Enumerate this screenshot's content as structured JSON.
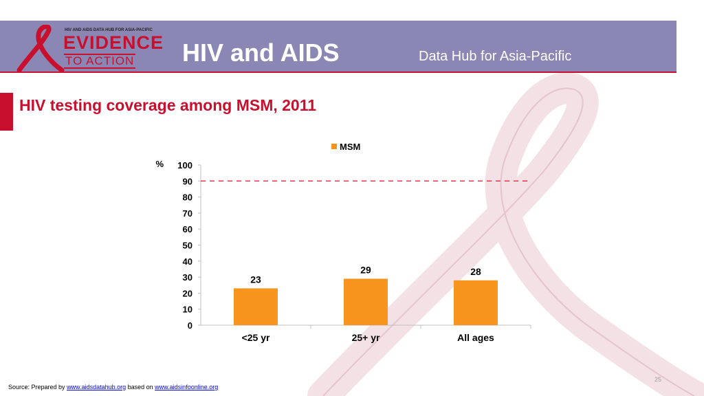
{
  "header": {
    "logo_small_text": "HIV AND AIDS DATA HUB FOR ASIA-PACIFIC",
    "logo_line1": "EVIDENCE",
    "logo_line2": "TO ACTION",
    "title": "HIV and AIDS",
    "subtitle": "Data Hub for Asia-Pacific"
  },
  "slide": {
    "title": "HIV testing coverage among MSM, 2011",
    "page_number": "25"
  },
  "footer": {
    "prefix": "Source: Prepared by ",
    "link1": "www.aidsdatahub.org",
    "middle": " based on ",
    "link2": "www.aidsinfoonline.org"
  },
  "colors": {
    "accent": "#c8102e",
    "header_band": "#8b87b4",
    "bar": "#f7941d",
    "target_line": "#e8344a"
  },
  "chart_data": {
    "type": "bar",
    "categories": [
      "<25 yr",
      "25+ yr",
      "All ages"
    ],
    "series": [
      {
        "name": "MSM",
        "values": [
          23,
          29,
          28
        ]
      }
    ],
    "data_labels": [
      "23",
      "29",
      "28"
    ],
    "ylabel": "%",
    "ylim": [
      0,
      100
    ],
    "yticks": [
      "0",
      "10",
      "20",
      "30",
      "40",
      "50",
      "60",
      "70",
      "80",
      "90",
      "100"
    ],
    "target_value": 90,
    "legend_position": "top",
    "grid": false
  }
}
